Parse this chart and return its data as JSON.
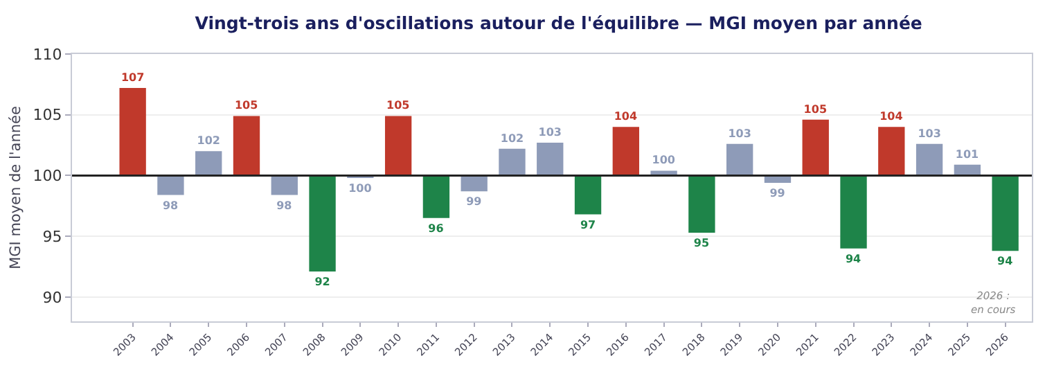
{
  "chart_data": {
    "type": "bar",
    "title": "Vingt-trois ans d'oscillations autour de l'équilibre — MGI moyen par année",
    "ylabel": "MGI moyen de l'année",
    "categories": [
      "2003",
      "2004",
      "2005",
      "2006",
      "2007",
      "2008",
      "2009",
      "2010",
      "2011",
      "2012",
      "2013",
      "2014",
      "2015",
      "2016",
      "2017",
      "2018",
      "2019",
      "2020",
      "2021",
      "2022",
      "2023",
      "2024",
      "2025",
      "2026"
    ],
    "base": [
      100,
      100,
      100,
      100,
      100,
      100,
      100,
      100,
      100,
      100,
      100,
      100,
      100,
      100,
      100,
      100,
      100,
      100,
      100,
      100,
      100,
      100,
      100,
      100
    ],
    "values": [
      7.2,
      -1.6,
      2.0,
      4.9,
      -1.6,
      -7.9,
      -0.2,
      4.9,
      -3.5,
      -1.3,
      2.2,
      2.7,
      -3.2,
      4.0,
      0.4,
      -4.7,
      2.6,
      -0.6,
      4.6,
      -6.0,
      4.0,
      2.6,
      0.9,
      -6.2
    ],
    "value_labels": [
      "107",
      "98",
      "102",
      "105",
      "98",
      "92",
      "100",
      "105",
      "96",
      "99",
      "102",
      "103",
      "97",
      "104",
      "100",
      "95",
      "103",
      "99",
      "105",
      "94",
      "104",
      "103",
      "101",
      "94"
    ],
    "colors": [
      "#c0392b",
      "#8e9bb8",
      "#8e9bb8",
      "#c0392b",
      "#8e9bb8",
      "#1e8449",
      "#8e9bb8",
      "#c0392b",
      "#1e8449",
      "#8e9bb8",
      "#8e9bb8",
      "#8e9bb8",
      "#1e8449",
      "#c0392b",
      "#8e9bb8",
      "#1e8449",
      "#8e9bb8",
      "#8e9bb8",
      "#c0392b",
      "#1e8449",
      "#c0392b",
      "#8e9bb8",
      "#8e9bb8",
      "#1e8449"
    ],
    "ylim": [
      88,
      110
    ],
    "yticks": [
      90,
      95,
      100,
      105,
      110
    ],
    "grid": "y",
    "ref_lines": [
      {
        "axis": "y",
        "value": 100,
        "color": "#222222"
      }
    ],
    "annotations": [
      "2026 :\nen cours"
    ]
  }
}
